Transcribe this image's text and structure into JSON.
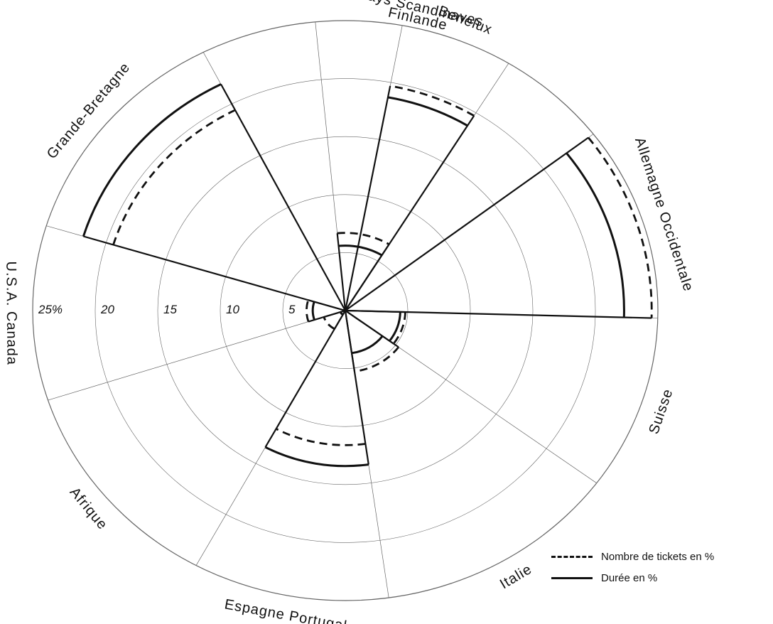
{
  "chart_data": {
    "type": "polar-area",
    "rings": [
      5,
      10,
      15,
      20,
      25
    ],
    "ring_labels": [
      "5",
      "10",
      "15",
      "20",
      "25%"
    ],
    "rmax": 25,
    "grid": true,
    "legend_position": "bottom-right",
    "series": [
      {
        "name": "Nombre de tickets en %",
        "style": "dashed"
      },
      {
        "name": "Durée en %",
        "style": "solid"
      }
    ],
    "sectors": [
      {
        "label_lines": [
          "Pays Scandinaves",
          "Finlande"
        ],
        "a1": -95.5,
        "a2": -58.5,
        "tickets": 6.7,
        "duree": 5.6
      },
      {
        "label_lines": [
          "Benelux"
        ],
        "a1": -58.5,
        "a2": -79.5,
        "tickets": 19.7,
        "duree": 18.7
      },
      {
        "label_lines": [
          "Allemagne Occidentale"
        ],
        "a1": -37.5,
        "a2": 1.5,
        "tickets": 24.5,
        "duree": 22.3
      },
      {
        "label_lines": [
          "Suisse"
        ],
        "a1": 1.5,
        "a2": 36.5,
        "tickets": 4.8,
        "duree": 4.4
      },
      {
        "label_lines": [
          "Italie"
        ],
        "a1": 36.5,
        "a2": 82.0,
        "tickets": 5.3,
        "duree": 3.7
      },
      {
        "label_lines": [
          "Espagne Portugal"
        ],
        "a1": 82.0,
        "a2": 118.5,
        "tickets": 11.6,
        "duree": 13.4
      },
      {
        "label_lines": [
          "Afrique"
        ],
        "a1": 118.5,
        "a2": 162.0,
        "tickets": 1.8,
        "duree": 0.4
      },
      {
        "label_lines": [
          "U.S.A. Canada"
        ],
        "a1": 162.0,
        "a2": 197.0,
        "tickets": 3.1,
        "duree": 2.6
      },
      {
        "label_lines": [
          "Grande-Bretagne"
        ],
        "a1": 197.0,
        "a2": 243.0,
        "tickets": 19.4,
        "duree": 21.9
      }
    ]
  },
  "legend": {
    "tickets_label": "Nombre de tickets en %",
    "duree_label": "Durée en %"
  }
}
